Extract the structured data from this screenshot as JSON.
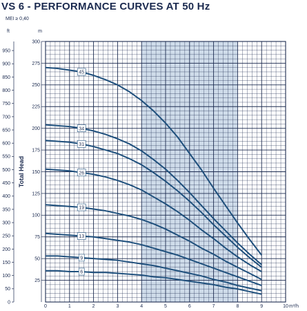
{
  "title": "VS 6 - PERFORMANCE CURVES AT 50 Hz",
  "subtitle": "MEI ≥ 0,40",
  "chart_data": {
    "type": "line",
    "title": "VS 6 - PERFORMANCE CURVES AT 50 Hz",
    "ylabel": "Total Head",
    "x_unit": "m³/h",
    "y_unit_ft": "ft",
    "y_unit_m": "m",
    "xlim": [
      0,
      10
    ],
    "ylim_m": [
      0,
      300
    ],
    "ylim_ft": [
      0,
      984.25
    ],
    "x_ticks": [
      "0",
      "1",
      "2",
      "3",
      "4",
      "5",
      "6",
      "7",
      "8",
      "9",
      "10"
    ],
    "y_ticks_m": [
      "25",
      "50",
      "75",
      "100",
      "125",
      "150",
      "175",
      "200",
      "225",
      "250",
      "275",
      "300"
    ],
    "y_ticks_ft": [
      "0",
      "50",
      "100",
      "150",
      "200",
      "250",
      "300",
      "350",
      "400",
      "450",
      "500",
      "550",
      "600",
      "650",
      "700",
      "750",
      "800",
      "850",
      "900",
      "950"
    ],
    "highlight_range_x": [
      4,
      8
    ],
    "grid": true,
    "line_color": "#1e4f7c",
    "band_color": "#cfdcea",
    "series": [
      {
        "name": "45",
        "label_x": 1.5,
        "x": [
          0,
          0.5,
          1,
          1.5,
          2,
          2.5,
          3,
          3.5,
          4,
          4.5,
          5,
          5.5,
          6,
          6.5,
          7,
          7.5,
          8,
          8.5,
          9
        ],
        "y": [
          270,
          269,
          267,
          265,
          261,
          256,
          250,
          242,
          232,
          220,
          206,
          190,
          171,
          152,
          131,
          111,
          91,
          72,
          54
        ]
      },
      {
        "name": "34",
        "label_x": 1.5,
        "x": [
          0,
          0.5,
          1,
          1.5,
          2,
          2.5,
          3,
          3.5,
          4,
          4.5,
          5,
          5.5,
          6,
          6.5,
          7,
          7.5,
          8,
          8.5,
          9
        ],
        "y": [
          204,
          203,
          202,
          200,
          197,
          193,
          188,
          182,
          174,
          164,
          153,
          140,
          126,
          111,
          96,
          82,
          68,
          55,
          43
        ]
      },
      {
        "name": "31",
        "label_x": 1.5,
        "x": [
          0,
          0.5,
          1,
          1.5,
          2,
          2.5,
          3,
          3.5,
          4,
          4.5,
          5,
          5.5,
          6,
          6.5,
          7,
          7.5,
          8,
          8.5,
          9
        ],
        "y": [
          186,
          185,
          184,
          182,
          179,
          175,
          171,
          165,
          158,
          149,
          139,
          128,
          116,
          103,
          89,
          76,
          63,
          51,
          40
        ]
      },
      {
        "name": "26",
        "label_x": 1.5,
        "x": [
          0,
          0.5,
          1,
          1.5,
          2,
          2.5,
          3,
          3.5,
          4,
          4.5,
          5,
          5.5,
          6,
          6.5,
          7,
          7.5,
          8,
          8.5,
          9
        ],
        "y": [
          153,
          152,
          151,
          149,
          147,
          144,
          140,
          135,
          129,
          121,
          113,
          104,
          94,
          83,
          73,
          62,
          52,
          43,
          35
        ]
      },
      {
        "name": "19",
        "label_x": 1.5,
        "x": [
          0,
          0.5,
          1,
          1.5,
          2,
          2.5,
          3,
          3.5,
          4,
          4.5,
          5,
          5.5,
          6,
          6.5,
          7,
          7.5,
          8,
          8.5,
          9
        ],
        "y": [
          112,
          111,
          110,
          109,
          107,
          105,
          102,
          99,
          95,
          90,
          84,
          77,
          70,
          62,
          55,
          47,
          40,
          33,
          26
        ]
      },
      {
        "name": "13",
        "label_x": 1.5,
        "x": [
          0,
          0.5,
          1,
          1.5,
          2,
          2.5,
          3,
          3.5,
          4,
          4.5,
          5,
          5.5,
          6,
          6.5,
          7,
          7.5,
          8,
          8.5,
          9
        ],
        "y": [
          79,
          78,
          77,
          76,
          75,
          73,
          71,
          69,
          66,
          62,
          58,
          54,
          49,
          44,
          39,
          34,
          29,
          24,
          19
        ]
      },
      {
        "name": "9",
        "label_x": 1.5,
        "x": [
          0,
          0.5,
          1,
          1.5,
          2,
          2.5,
          3,
          3.5,
          4,
          4.5,
          5,
          5.5,
          6,
          6.5,
          7,
          7.5,
          8,
          8.5,
          9
        ],
        "y": [
          53,
          53,
          52,
          51,
          50,
          49,
          48,
          46,
          44,
          42,
          39,
          36,
          33,
          30,
          26,
          23,
          19,
          16,
          13
        ]
      },
      {
        "name": "6",
        "label_x": 1.5,
        "x": [
          0,
          0.5,
          1,
          1.5,
          2,
          2.5,
          3,
          3.5,
          4,
          4.5,
          5,
          5.5,
          6,
          6.5,
          7,
          7.5,
          8,
          8.5,
          9
        ],
        "y": [
          36,
          36,
          35,
          35,
          34,
          34,
          33,
          32,
          31,
          29,
          28,
          26,
          24,
          22,
          20,
          17,
          15,
          12,
          9
        ]
      }
    ]
  }
}
